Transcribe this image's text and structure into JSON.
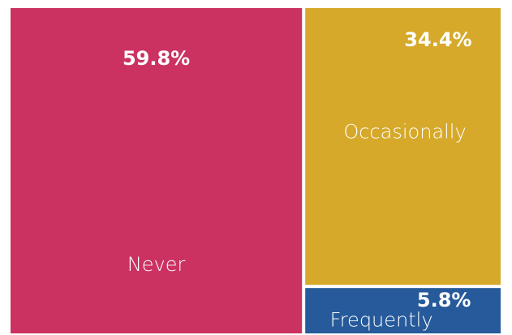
{
  "chart_data": {
    "type": "treemap",
    "categories": [
      "Never",
      "Occasionally",
      "Frequently"
    ],
    "values": [
      59.8,
      34.4,
      5.8
    ],
    "value_labels": [
      "59.8%",
      "34.4%",
      "5.8%"
    ],
    "colors": [
      "#cb3262",
      "#d6a92a",
      "#265a9a"
    ]
  }
}
